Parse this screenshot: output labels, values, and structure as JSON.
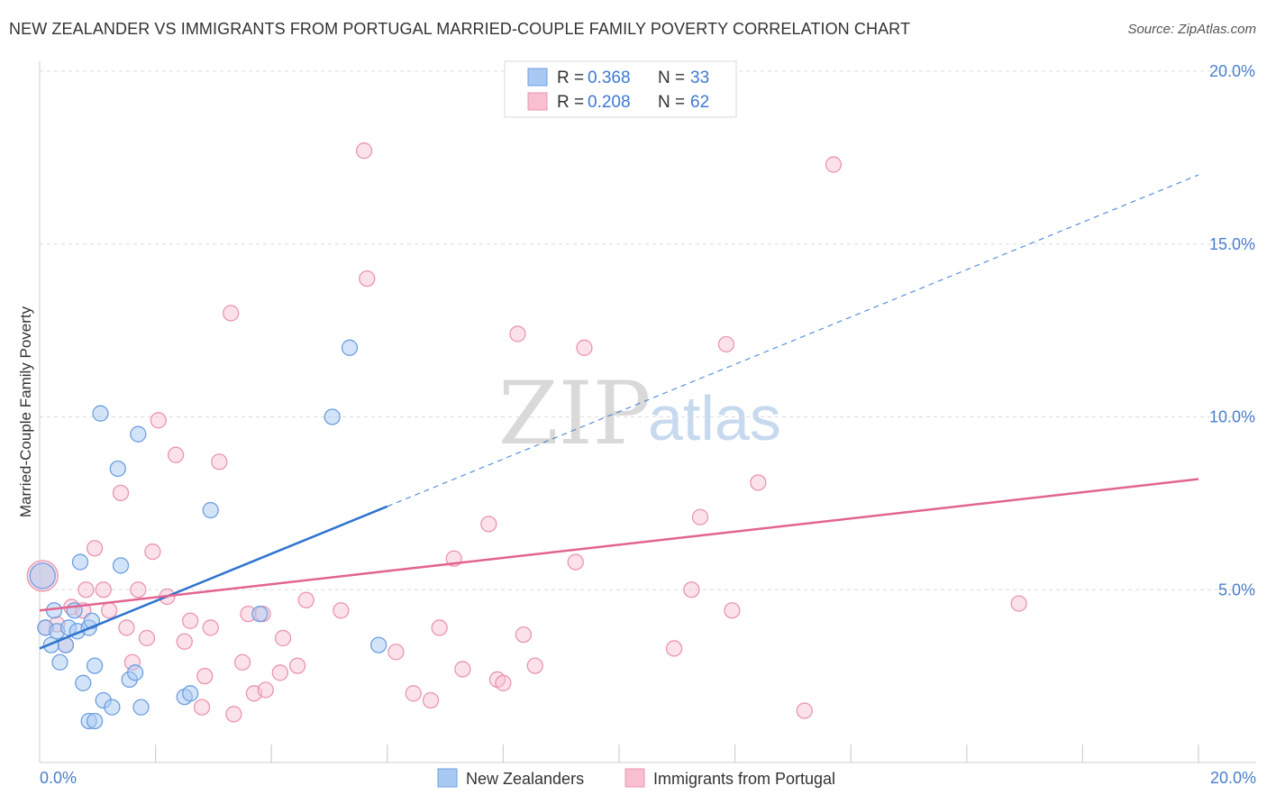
{
  "title": "NEW ZEALANDER VS IMMIGRANTS FROM PORTUGAL MARRIED-COUPLE FAMILY POVERTY CORRELATION CHART",
  "source": "Source: ZipAtlas.com",
  "watermark": {
    "zip": "ZIP",
    "atlas": "atlas"
  },
  "colors": {
    "blue_fill": "#a9c9f2",
    "blue_stroke": "#6d9fe0",
    "blue_line": "#2f74d0",
    "pink_fill": "#f7bfd0",
    "pink_stroke": "#e995b0",
    "pink_line": "#e2648f",
    "tick_label": "#4a7fcb"
  },
  "legend_top": {
    "rows": [
      {
        "r_label": "R =",
        "r_value": "0.368",
        "n_label": "N =",
        "n_value": "33"
      },
      {
        "r_label": "R =",
        "r_value": "0.208",
        "n_label": "N =",
        "n_value": "62"
      }
    ]
  },
  "legend_bottom": {
    "items": [
      {
        "label": "New Zealanders"
      },
      {
        "label": "Immigrants from Portugal"
      }
    ]
  },
  "chart_data": {
    "type": "scatter",
    "title": "NEW ZEALANDER VS IMMIGRANTS FROM PORTUGAL MARRIED-COUPLE FAMILY POVERTY CORRELATION CHART",
    "xlabel": "",
    "ylabel": "Married-Couple Family Poverty",
    "xlim": [
      0,
      20
    ],
    "ylim": [
      0,
      20
    ],
    "x_tick_labels": [
      "0.0%",
      "20.0%"
    ],
    "y_ticks": [
      5,
      10,
      15,
      20
    ],
    "y_tick_labels": [
      "5.0%",
      "10.0%",
      "15.0%",
      "20.0%"
    ],
    "grid": true,
    "legend_position": "top-center",
    "series": [
      {
        "name": "New Zealanders",
        "r": 0.368,
        "n": 33,
        "trend": {
          "x0": 0.0,
          "y0": 3.3,
          "x1": 20.0,
          "y1": 17.0,
          "solid_until_x": 6.0
        },
        "points": [
          [
            0.1,
            3.9
          ],
          [
            0.2,
            3.4
          ],
          [
            0.25,
            4.4
          ],
          [
            0.3,
            3.8
          ],
          [
            0.35,
            2.9
          ],
          [
            0.45,
            3.4
          ],
          [
            0.5,
            3.9
          ],
          [
            0.6,
            4.4
          ],
          [
            0.65,
            3.8
          ],
          [
            0.7,
            5.8
          ],
          [
            0.75,
            2.3
          ],
          [
            0.85,
            1.2
          ],
          [
            0.85,
            3.9
          ],
          [
            0.9,
            4.1
          ],
          [
            0.95,
            1.2
          ],
          [
            0.95,
            2.8
          ],
          [
            1.05,
            10.1
          ],
          [
            1.1,
            1.8
          ],
          [
            1.25,
            1.6
          ],
          [
            1.35,
            8.5
          ],
          [
            1.4,
            5.7
          ],
          [
            1.55,
            2.4
          ],
          [
            1.65,
            2.6
          ],
          [
            1.7,
            9.5
          ],
          [
            1.75,
            1.6
          ],
          [
            2.5,
            1.9
          ],
          [
            2.6,
            2.0
          ],
          [
            2.95,
            7.3
          ],
          [
            3.8,
            4.3
          ],
          [
            5.05,
            10.0
          ],
          [
            5.35,
            12.0
          ],
          [
            5.85,
            3.4
          ],
          [
            0.05,
            5.4
          ]
        ]
      },
      {
        "name": "Immigrants from Portugal",
        "r": 0.208,
        "n": 62,
        "trend": {
          "x0": 0.0,
          "y0": 4.4,
          "x1": 20.0,
          "y1": 8.2
        },
        "points": [
          [
            0.05,
            5.4
          ],
          [
            0.3,
            4.0
          ],
          [
            0.45,
            3.4
          ],
          [
            0.55,
            4.5
          ],
          [
            0.75,
            4.4
          ],
          [
            0.8,
            5.0
          ],
          [
            0.95,
            6.2
          ],
          [
            1.1,
            5.0
          ],
          [
            1.2,
            4.4
          ],
          [
            1.4,
            7.8
          ],
          [
            1.5,
            3.9
          ],
          [
            1.6,
            2.9
          ],
          [
            1.7,
            5.0
          ],
          [
            1.85,
            3.6
          ],
          [
            1.95,
            6.1
          ],
          [
            2.05,
            9.9
          ],
          [
            2.2,
            4.8
          ],
          [
            2.35,
            8.9
          ],
          [
            2.5,
            3.5
          ],
          [
            2.6,
            4.1
          ],
          [
            2.8,
            1.6
          ],
          [
            2.85,
            2.5
          ],
          [
            2.95,
            3.9
          ],
          [
            3.1,
            8.7
          ],
          [
            3.3,
            13.0
          ],
          [
            3.35,
            1.4
          ],
          [
            3.5,
            2.9
          ],
          [
            3.6,
            4.3
          ],
          [
            3.7,
            2.0
          ],
          [
            3.85,
            4.3
          ],
          [
            3.9,
            2.1
          ],
          [
            4.15,
            2.6
          ],
          [
            4.2,
            3.6
          ],
          [
            4.45,
            2.8
          ],
          [
            4.6,
            4.7
          ],
          [
            5.2,
            4.4
          ],
          [
            5.6,
            17.7
          ],
          [
            5.65,
            14.0
          ],
          [
            6.15,
            3.2
          ],
          [
            6.45,
            2.0
          ],
          [
            6.75,
            1.8
          ],
          [
            6.9,
            3.9
          ],
          [
            7.15,
            5.9
          ],
          [
            7.3,
            2.7
          ],
          [
            7.75,
            6.9
          ],
          [
            7.9,
            2.4
          ],
          [
            8.0,
            2.3
          ],
          [
            8.25,
            12.4
          ],
          [
            8.35,
            3.7
          ],
          [
            8.55,
            2.8
          ],
          [
            9.25,
            5.8
          ],
          [
            9.4,
            12.0
          ],
          [
            10.95,
            3.3
          ],
          [
            11.25,
            5.0
          ],
          [
            11.4,
            7.1
          ],
          [
            11.85,
            12.1
          ],
          [
            11.95,
            4.4
          ],
          [
            12.4,
            8.1
          ],
          [
            13.7,
            17.3
          ],
          [
            13.2,
            1.5
          ],
          [
            16.9,
            4.6
          ],
          [
            0.1,
            3.9
          ]
        ]
      }
    ]
  }
}
